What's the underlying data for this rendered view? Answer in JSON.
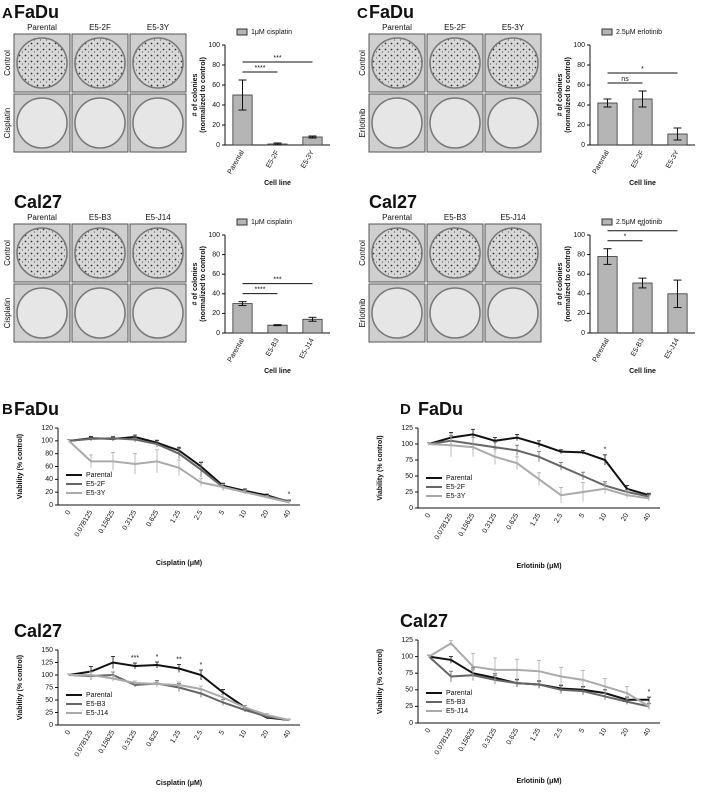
{
  "panel_labels": [
    "A",
    "B",
    "C",
    "D"
  ],
  "colony_panels": [
    {
      "title": "FaDu",
      "columns": [
        "Parental",
        "E5-2F",
        "E5-3Y"
      ],
      "rows": [
        "Control",
        "Cisplatin"
      ]
    },
    {
      "title": "Cal27",
      "columns": [
        "Parental",
        "E5-B3",
        "E5-J14"
      ],
      "rows": [
        "Control",
        "Cisplatin"
      ]
    },
    {
      "title": "FaDu",
      "columns": [
        "Parental",
        "E5-2F",
        "E5-3Y"
      ],
      "rows": [
        "Control",
        "Erlotinib"
      ]
    },
    {
      "title": "Cal27",
      "columns": [
        "Parental",
        "E5-B3",
        "E5-J14"
      ],
      "rows": [
        "Control",
        "Erlotinib"
      ]
    }
  ],
  "chart_data": [
    {
      "type": "bar",
      "categories": [
        "Parental",
        "E5-2F",
        "E5-3Y"
      ],
      "series": [
        {
          "name": "1μM cisplatin",
          "color": "#b5b5b5",
          "values": [
            50,
            1,
            8
          ],
          "errors": [
            15,
            1,
            1
          ]
        }
      ],
      "ylim": [
        0,
        100
      ],
      "yticks": [
        0,
        20,
        40,
        60,
        80,
        100
      ],
      "ylabel": [
        "# of colonies",
        "(normalized to control)"
      ],
      "xlabel": "Cell line",
      "significance": [
        {
          "between": [
            "Parental",
            "E5-2F"
          ],
          "label": "****"
        },
        {
          "between": [
            "Parental",
            "E5-3Y"
          ],
          "label": "***"
        }
      ]
    },
    {
      "type": "bar",
      "categories": [
        "Parental",
        "E5-B3",
        "E5-J14"
      ],
      "series": [
        {
          "name": "1μM cisplatin",
          "color": "#b5b5b5",
          "values": [
            30,
            8,
            14
          ],
          "errors": [
            2,
            0.5,
            2
          ]
        }
      ],
      "ylim": [
        0,
        100
      ],
      "yticks": [
        0,
        20,
        40,
        60,
        80,
        100
      ],
      "ylabel": [
        "# of colonies",
        "(normalized to control)"
      ],
      "xlabel": "Cell line",
      "significance": [
        {
          "between": [
            "Parental",
            "E5-B3"
          ],
          "label": "****"
        },
        {
          "between": [
            "Parental",
            "E5-J14"
          ],
          "label": "***"
        }
      ]
    },
    {
      "type": "bar",
      "categories": [
        "Parental",
        "E5-2F",
        "E5-3Y"
      ],
      "series": [
        {
          "name": "2.5μM erlotinib",
          "color": "#b5b5b5",
          "values": [
            42,
            46,
            11
          ],
          "errors": [
            4,
            8,
            6
          ]
        }
      ],
      "ylim": [
        0,
        100
      ],
      "yticks": [
        0,
        20,
        40,
        60,
        80,
        100
      ],
      "ylabel": [
        "# of colonies",
        "(normalized to control)"
      ],
      "xlabel": "Cell line",
      "significance": [
        {
          "between": [
            "Parental",
            "E5-2F"
          ],
          "label": "ns"
        },
        {
          "between": [
            "Parental",
            "E5-3Y"
          ],
          "label": "*"
        }
      ]
    },
    {
      "type": "bar",
      "categories": [
        "Parental",
        "E5-B3",
        "E5-J14"
      ],
      "series": [
        {
          "name": "2.5μM erlotinib",
          "color": "#b5b5b5",
          "values": [
            78,
            51,
            40
          ],
          "errors": [
            8,
            5,
            14
          ]
        }
      ],
      "ylim": [
        0,
        100
      ],
      "yticks": [
        0,
        20,
        40,
        60,
        80,
        100
      ],
      "ylabel": [
        "# of colonies",
        "(normalized to control)"
      ],
      "xlabel": "Cell line",
      "significance": [
        {
          "between": [
            "Parental",
            "E5-B3"
          ],
          "label": "*"
        },
        {
          "between": [
            "Parental",
            "E5-J14"
          ],
          "label": "**"
        }
      ]
    },
    {
      "type": "line",
      "title": "FaDu",
      "categories": [
        "0",
        "0.078125",
        "0.15625",
        "0.3125",
        "0.625",
        "1.25",
        "2.5",
        "5",
        "10",
        "20",
        "40"
      ],
      "ylim": [
        0,
        120
      ],
      "yticks": [
        0,
        20,
        40,
        60,
        80,
        100,
        120
      ],
      "ylabel": "Viability (% control)",
      "xlabel": "Cisplatin (μM)",
      "series": [
        {
          "name": "Parental",
          "color": "#111111",
          "values": [
            100,
            104,
            103,
            106,
            97,
            85,
            60,
            30,
            22,
            15,
            5
          ],
          "errors": [
            2,
            3,
            3,
            3,
            4,
            5,
            6,
            4,
            3,
            2,
            2
          ]
        },
        {
          "name": "E5-2F",
          "color": "#666666",
          "values": [
            100,
            103,
            104,
            102,
            95,
            80,
            55,
            28,
            20,
            13,
            6
          ],
          "errors": [
            2,
            3,
            3,
            4,
            5,
            8,
            12,
            5,
            3,
            2,
            2
          ]
        },
        {
          "name": "E5-3Y",
          "color": "#aaaaaa",
          "values": [
            100,
            68,
            68,
            64,
            68,
            58,
            35,
            28,
            20,
            12,
            4
          ],
          "errors": [
            2,
            10,
            14,
            16,
            18,
            12,
            6,
            4,
            3,
            2,
            2
          ]
        }
      ],
      "annotations": [
        {
          "x": "40",
          "label": "*"
        }
      ]
    },
    {
      "type": "line",
      "title": "Cal27",
      "categories": [
        "0",
        "0.078125",
        "0.15625",
        "0.3125",
        "0.625",
        "1.25",
        "2.5",
        "5",
        "10",
        "20",
        "40"
      ],
      "ylim": [
        0,
        150
      ],
      "yticks": [
        0,
        25,
        50,
        75,
        100,
        125,
        150
      ],
      "ylabel": "Viability (% control)",
      "xlabel": "Cisplatin (μM)",
      "series": [
        {
          "name": "Parental",
          "color": "#111111",
          "values": [
            100,
            107,
            125,
            118,
            120,
            113,
            100,
            65,
            35,
            15,
            10
          ],
          "errors": [
            2,
            10,
            12,
            6,
            6,
            8,
            10,
            6,
            4,
            3,
            2
          ]
        },
        {
          "name": "E5-B3",
          "color": "#666666",
          "values": [
            100,
            98,
            100,
            80,
            83,
            75,
            63,
            45,
            30,
            17,
            10
          ],
          "errors": [
            2,
            8,
            6,
            4,
            6,
            8,
            8,
            6,
            4,
            3,
            2
          ]
        },
        {
          "name": "E5-J14",
          "color": "#aaaaaa",
          "values": [
            100,
            100,
            93,
            84,
            82,
            80,
            72,
            55,
            35,
            20,
            10
          ],
          "errors": [
            2,
            6,
            6,
            4,
            4,
            6,
            6,
            6,
            4,
            3,
            2
          ]
        }
      ],
      "annotations": [
        {
          "x": "0.3125",
          "label": "***"
        },
        {
          "x": "0.625",
          "label": "*"
        },
        {
          "x": "1.25",
          "label": "**"
        },
        {
          "x": "2.5",
          "label": "*"
        }
      ]
    },
    {
      "type": "line",
      "title": "FaDu",
      "categories": [
        "0",
        "0.078125",
        "0.15625",
        "0.3125",
        "0.625",
        "1.25",
        "2.5",
        "5",
        "10",
        "20",
        "40"
      ],
      "ylim": [
        0,
        125
      ],
      "yticks": [
        0,
        25,
        50,
        75,
        100,
        125
      ],
      "ylabel": "Viability (% control)",
      "xlabel": "Erlotinib (μM)",
      "series": [
        {
          "name": "Parental",
          "color": "#111111",
          "values": [
            100,
            110,
            115,
            105,
            110,
            100,
            88,
            87,
            75,
            30,
            20
          ],
          "errors": [
            2,
            8,
            8,
            5,
            5,
            5,
            3,
            3,
            8,
            5,
            3
          ]
        },
        {
          "name": "E5-2F",
          "color": "#666666",
          "values": [
            100,
            105,
            100,
            95,
            90,
            80,
            65,
            50,
            35,
            25,
            18
          ],
          "errors": [
            2,
            8,
            10,
            8,
            8,
            8,
            6,
            6,
            6,
            4,
            3
          ]
        },
        {
          "name": "E5-3Y",
          "color": "#aaaaaa",
          "values": [
            100,
            98,
            95,
            80,
            70,
            45,
            20,
            25,
            30,
            20,
            15
          ],
          "errors": [
            2,
            18,
            15,
            12,
            10,
            10,
            12,
            15,
            8,
            5,
            4
          ]
        }
      ],
      "annotations": [
        {
          "x": "10",
          "label": "*"
        }
      ]
    },
    {
      "type": "line",
      "title": "Cal27",
      "categories": [
        "0",
        "0.078125",
        "0.15625",
        "0.3125",
        "0.625",
        "1.25",
        "2.5",
        "5",
        "10",
        "20",
        "40"
      ],
      "ylim": [
        0,
        125
      ],
      "yticks": [
        0,
        25,
        50,
        75,
        100,
        125
      ],
      "ylabel": "Viability (% control)",
      "xlabel": "Erlotinib (μM)",
      "series": [
        {
          "name": "Parental",
          "color": "#111111",
          "values": [
            100,
            95,
            75,
            68,
            60,
            58,
            52,
            50,
            45,
            35,
            35
          ],
          "errors": [
            2,
            5,
            8,
            6,
            5,
            5,
            5,
            5,
            5,
            4,
            4
          ]
        },
        {
          "name": "E5-B3",
          "color": "#666666",
          "values": [
            100,
            70,
            72,
            65,
            60,
            58,
            50,
            48,
            40,
            32,
            25
          ],
          "errors": [
            2,
            8,
            8,
            6,
            6,
            6,
            6,
            6,
            5,
            4,
            4
          ]
        },
        {
          "name": "E5-J14",
          "color": "#aaaaaa",
          "values": [
            100,
            120,
            85,
            80,
            80,
            78,
            70,
            65,
            55,
            45,
            25
          ],
          "errors": [
            2,
            4,
            20,
            18,
            16,
            16,
            14,
            14,
            12,
            10,
            5
          ]
        }
      ],
      "annotations": [
        {
          "x": "40",
          "label": "*"
        }
      ]
    }
  ]
}
